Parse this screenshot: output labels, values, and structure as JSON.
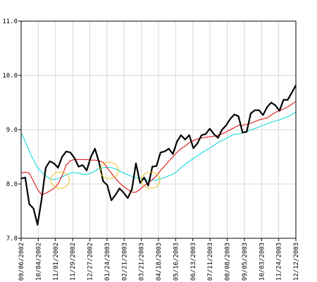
{
  "chart_data": {
    "type": "line",
    "title": "",
    "xlabel": "",
    "ylabel": "",
    "ylim": [
      7.0,
      11.0
    ],
    "yticks": [
      7.0,
      8.0,
      9.0,
      10.0,
      11.0
    ],
    "ytick_labels": [
      "7.0",
      "8.0",
      "9.0",
      "10.0",
      "11.0"
    ],
    "xtick_labels": [
      "09/06/2002",
      "10/04/2002",
      "11/01/2002",
      "11/29/2002",
      "12/27/2002",
      "01/24/2003",
      "02/21/2003",
      "03/21/2003",
      "04/18/2003",
      "05/16/2003",
      "06/13/2003",
      "07/11/2003",
      "08/08/2003",
      "09/05/2003",
      "10/03/2003",
      "11/24/2003",
      "12/12/2003"
    ],
    "grid": true,
    "colors": {
      "price": "#000000",
      "ma_short": "#dd0000",
      "ma_long": "#00d8d8",
      "highlight": "#f0c020",
      "grid": "#d8d8d8",
      "axis": "#000000"
    },
    "series": [
      {
        "role": "price",
        "values": [
          8.1,
          8.12,
          7.63,
          7.55,
          7.25,
          7.72,
          8.3,
          8.42,
          8.38,
          8.3,
          8.5,
          8.6,
          8.58,
          8.48,
          8.32,
          8.35,
          8.25,
          8.5,
          8.65,
          8.4,
          8.05,
          7.98,
          7.7,
          7.8,
          7.92,
          7.84,
          7.74,
          7.9,
          8.38,
          8.02,
          8.12,
          7.97,
          8.32,
          8.33,
          8.58,
          8.6,
          8.65,
          8.55,
          8.78,
          8.9,
          8.82,
          8.9,
          8.66,
          8.75,
          8.9,
          8.92,
          9.02,
          8.92,
          8.85,
          9.0,
          9.08,
          9.2,
          9.28,
          9.25,
          8.95,
          8.96,
          9.3,
          9.36,
          9.36,
          9.27,
          9.42,
          9.5,
          9.45,
          9.35,
          9.55,
          9.55,
          9.68,
          9.82
        ]
      },
      {
        "role": "ma_short",
        "values": [
          8.2,
          8.22,
          8.2,
          8.05,
          7.9,
          7.8,
          7.83,
          7.87,
          7.92,
          8.0,
          8.15,
          8.35,
          8.43,
          8.45,
          8.45,
          8.45,
          8.45,
          8.44,
          8.44,
          8.43,
          8.4,
          8.3,
          8.2,
          8.1,
          8.02,
          7.95,
          7.9,
          7.85,
          7.85,
          7.9,
          7.97,
          8.02,
          8.08,
          8.15,
          8.25,
          8.33,
          8.42,
          8.5,
          8.58,
          8.65,
          8.7,
          8.76,
          8.8,
          8.83,
          8.85,
          8.86,
          8.87,
          8.88,
          8.9,
          8.92,
          8.96,
          9.0,
          9.04,
          9.08,
          9.08,
          9.1,
          9.12,
          9.15,
          9.18,
          9.2,
          9.22,
          9.27,
          9.32,
          9.35,
          9.38,
          9.42,
          9.47,
          9.52
        ]
      },
      {
        "role": "ma_long",
        "values": [
          8.95,
          8.78,
          8.6,
          8.45,
          8.3,
          8.22,
          8.15,
          8.1,
          8.08,
          8.1,
          8.13,
          8.17,
          8.2,
          8.21,
          8.2,
          8.18,
          8.17,
          8.2,
          8.24,
          8.28,
          8.3,
          8.31,
          8.3,
          8.28,
          8.24,
          8.2,
          8.17,
          8.14,
          8.12,
          8.1,
          8.08,
          8.07,
          8.07,
          8.07,
          8.1,
          8.12,
          8.15,
          8.18,
          8.23,
          8.3,
          8.36,
          8.42,
          8.47,
          8.52,
          8.57,
          8.62,
          8.66,
          8.71,
          8.76,
          8.8,
          8.84,
          8.88,
          8.92,
          8.92,
          8.94,
          8.97,
          9.0,
          9.02,
          9.05,
          9.08,
          9.11,
          9.14,
          9.16,
          9.18,
          9.21,
          9.24,
          9.28,
          9.33
        ]
      }
    ],
    "annotations": [
      {
        "shape": "ellipse",
        "x_index": 9.5,
        "y": 8.07,
        "rx_index": 2.3,
        "ry_value": 0.15
      },
      {
        "shape": "ellipse",
        "x_index": 21.5,
        "y": 8.25,
        "rx_index": 2.3,
        "ry_value": 0.15
      },
      {
        "shape": "ellipse",
        "x_index": 31.6,
        "y": 8.07,
        "rx_index": 2.3,
        "ry_value": 0.15
      }
    ]
  }
}
